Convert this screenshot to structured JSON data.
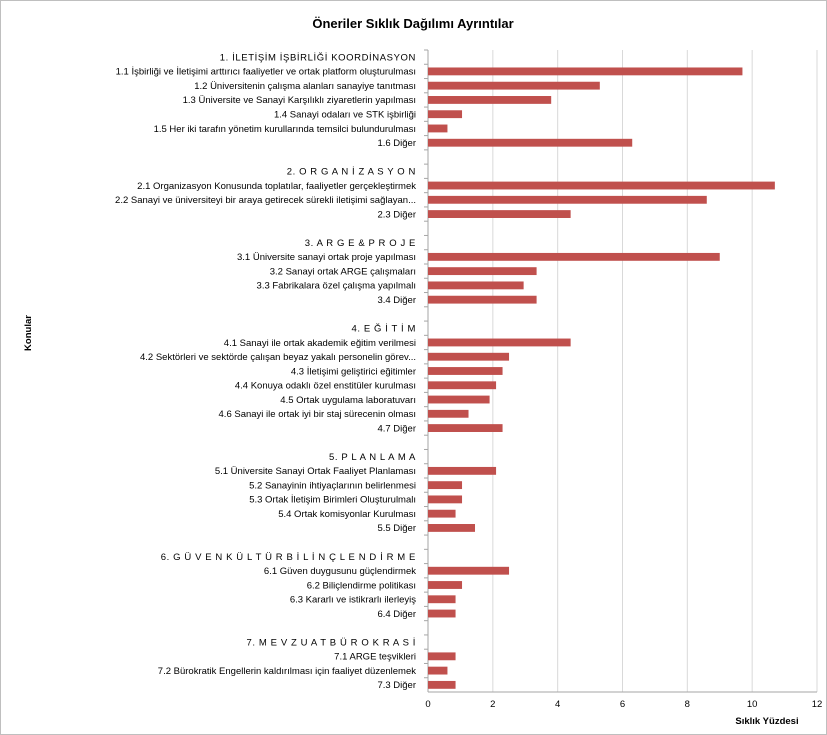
{
  "chart_data": {
    "type": "bar",
    "orientation": "horizontal",
    "title": "Öneriler Sıklık Dağılımı Ayrıntılar",
    "xlabel": "Sıklık Yüzdesi",
    "ylabel": "Konular",
    "xlim": [
      0,
      12
    ],
    "xticks": [
      0,
      2,
      4,
      6,
      8,
      10,
      12
    ],
    "grid": "vertical",
    "bar_color": "#c0504d",
    "categories": [
      "1. İLETİŞİM İŞBİRLİĞİ KOORDİNASYON",
      "1.1 İşbirliği ve İletişimi arttırıcı faaliyetler ve ortak platform oluşturulması",
      "1.2 Üniversitenin çalışma alanları sanayiye tanıtması",
      "1.3 Üniversite ve Sanayi Karşılıklı ziyaretlerin yapılması",
      "1.4 Sanayi odaları ve STK işbirliği",
      "1.5 Her iki tarafın yönetim kurullarında temsilci bulundurulması",
      "1.6 Diğer",
      "",
      "2. O R G A N İ Z A S Y O N",
      "2.1 Organizasyon Konusunda toplatılar, faaliyetler gerçekleştirmek",
      "2.2 Sanayi ve üniversiteyi bir araya getirecek sürekli iletişimi sağlayan...",
      "2.3 Diğer",
      "",
      "3. A R G E & P R O J E",
      "3.1 Üniversite sanayi ortak proje yapılması",
      "3.2 Sanayi ortak ARGE çalışmaları",
      "3.3 Fabrikalara özel çalışma yapılmalı",
      "3.4 Diğer",
      "",
      "4. E Ğ İ T İ M",
      "4.1 Sanayi ile ortak akademik eğitim verilmesi",
      "4.2 Sektörleri ve sektörde çalışan beyaz yakalı personelin görev...",
      "4.3 İletişimi geliştirici eğitimler",
      "4.4 Konuya odaklı özel enstitüler kurulması",
      "4.5 Ortak uygulama laboratuvarı",
      "4.6 Sanayi ile ortak iyi bir staj sürecenin olması",
      "4.7 Diğer",
      "",
      "5. P L A N L A M A",
      "5.1 Üniversite Sanayi Ortak Faaliyet Planlaması",
      "5.2 Sanayinin ihtiyaçlarının belirlenmesi",
      "5.3 Ortak İletişim Birimleri Oluşturulmalı",
      "5.4 Ortak komisyonlar Kurulması",
      "5.5 Diğer",
      "",
      "6. G Ü V E N K Ü L T Ü R B İ L İ N Ç L E N D İ R M E",
      "6.1 Güven duygusunu güçlendirmek",
      "6.2 Biliçlendirme politikası",
      "6.3 Kararlı ve istikrarlı ilerleyiş",
      "6.4 Diğer",
      "",
      "7. M E V Z U A T  B Ü R O K R A S İ",
      "7.1 ARGE teşvikleri",
      "7.2 Bürokratik Engellerin kaldırılması için faaliyet düzenlemek",
      "7.3 Diğer"
    ],
    "values": [
      null,
      9.7,
      5.3,
      3.8,
      1.05,
      0.6,
      6.3,
      null,
      null,
      10.7,
      8.6,
      4.4,
      null,
      null,
      9.0,
      3.35,
      2.95,
      3.35,
      null,
      null,
      4.4,
      2.5,
      2.3,
      2.1,
      1.9,
      1.25,
      2.3,
      null,
      null,
      2.1,
      1.05,
      1.05,
      0.85,
      1.45,
      null,
      null,
      2.5,
      1.05,
      0.85,
      0.85,
      null,
      null,
      0.85,
      0.6,
      0.85
    ]
  }
}
